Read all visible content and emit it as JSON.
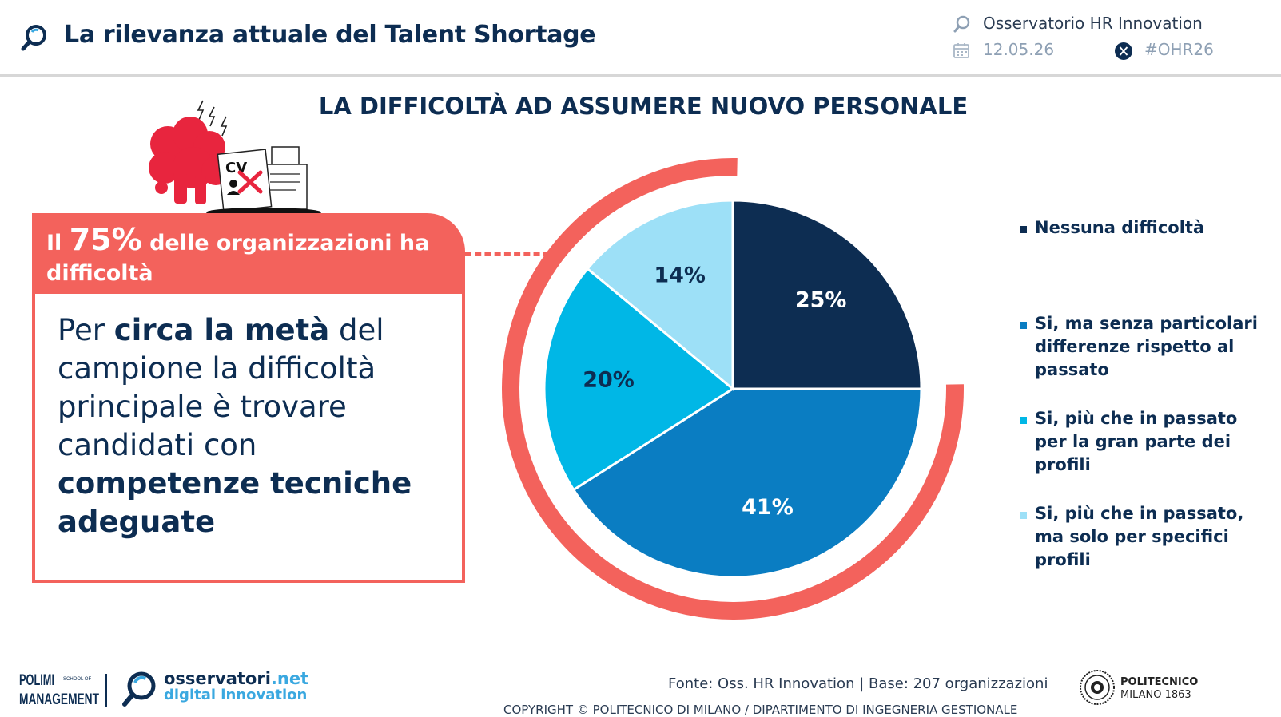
{
  "header": {
    "title": "La rilevanza attuale del Talent Shortage",
    "observatory": "Osservatorio HR Innovation",
    "date": "12.05.26",
    "hashtag": "#OHR26"
  },
  "callout": {
    "head_prefix": "Il ",
    "head_highlight": "75%",
    "head_suffix": " delle organizzazioni ha difficoltà",
    "body_1": "Per ",
    "body_2": "circa la metà",
    "body_3": " del campione la difficoltà principale è trovare candidati con ",
    "body_4": "competenze tecniche adeguate"
  },
  "chart_data": {
    "type": "pie",
    "title": "LA DIFFICOLTÀ AD ASSUMERE NUOVO PERSONALE",
    "categories": [
      "Nessuna difficoltà",
      "Si, ma senza particolari differenze rispetto al passato",
      "Si, più che in passato per la gran parte dei profili",
      "Si, più che in passato, ma solo per specifici profili"
    ],
    "values": [
      25,
      41,
      20,
      14
    ],
    "value_labels": [
      "25%",
      "41%",
      "20%",
      "14%"
    ],
    "colors": [
      "#0d2d52",
      "#0a7dc2",
      "#00b7e6",
      "#9de0f7"
    ],
    "label_colors": [
      "#ffffff",
      "#ffffff",
      "#0d2d52",
      "#0d2d52"
    ],
    "legend_position": "right",
    "highlight_share": 75,
    "highlight_color": "#f3625c"
  },
  "footer": {
    "source": "Fonte: Oss. HR Innovation | Base: 207 organizzazioni",
    "copyright": "COPYRIGHT © POLITECNICO DI MILANO / DIPARTIMENTO DI INGEGNERIA GESTIONALE",
    "osservatori_name": "osservatori",
    "osservatori_tld": ".net",
    "osservatori_sub": "digital innovation",
    "polimi_logo_1": "POLIMI",
    "polimi_logo_2": "SCHOOL OF",
    "polimi_logo_3": "MANAGEMENT",
    "politecnico_1": "POLITECNICO",
    "politecnico_2": "MILANO 1863"
  },
  "illustration": {
    "cv_label": "CV"
  },
  "icons": {
    "header": "magnifier-logo-icon",
    "observatory": "magnifier-logo-icon",
    "date": "calendar-icon",
    "social": "x-social-icon"
  }
}
